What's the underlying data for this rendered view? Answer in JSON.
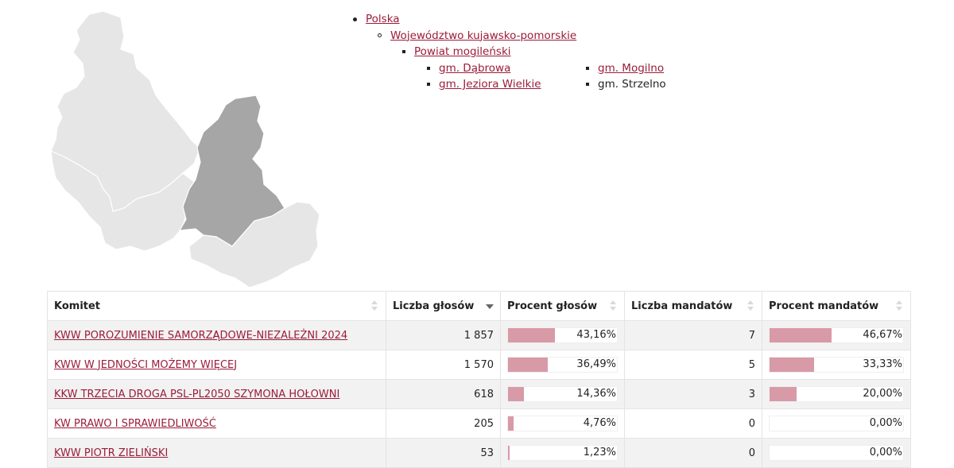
{
  "breadcrumb": {
    "country": "Polska",
    "voivodeship": "Województwo kujawsko-pomorskie",
    "county": "Powiat mogileński",
    "gminas": [
      {
        "label": "gm. Dąbrowa",
        "link": true
      },
      {
        "label": "gm. Mogilno",
        "link": true
      },
      {
        "label": "gm. Jeziora Wielkie",
        "link": true
      },
      {
        "label": "gm. Strzelno",
        "link": false
      }
    ]
  },
  "map": {
    "highlighted_color": "#a6a6a6",
    "region_color": "#e6e6e6",
    "border_color": "#ffffff"
  },
  "table": {
    "headers": {
      "committee": "Komitet",
      "votes": "Liczba głosów",
      "vote_pct": "Procent głosów",
      "seats": "Liczba mandatów",
      "seat_pct": "Procent mandatów"
    },
    "bar_color": "#d89aa7",
    "rows": [
      {
        "committee": "KWW POROZUMIENIE SAMORZĄDOWE-NIEZALEŻNI 2024",
        "votes": "1 857",
        "vote_pct": "43,16%",
        "vote_frac": 0.4316,
        "seats": "7",
        "seat_pct": "46,67%",
        "seat_frac": 0.4667
      },
      {
        "committee": "KWW W JEDNOŚCI MOŻEMY WIĘCEJ",
        "votes": "1 570",
        "vote_pct": "36,49%",
        "vote_frac": 0.3649,
        "seats": "5",
        "seat_pct": "33,33%",
        "seat_frac": 0.3333
      },
      {
        "committee": "KKW TRZECIA DROGA PSL-PL2050 SZYMONA HOŁOWNI",
        "votes": "618",
        "vote_pct": "14,36%",
        "vote_frac": 0.1436,
        "seats": "3",
        "seat_pct": "20,00%",
        "seat_frac": 0.2
      },
      {
        "committee": "KW PRAWO I SPRAWIEDLIWOŚĆ",
        "votes": "205",
        "vote_pct": "4,76%",
        "vote_frac": 0.0476,
        "seats": "0",
        "seat_pct": "0,00%",
        "seat_frac": 0
      },
      {
        "committee": "KWW PIOTR ZIELIŃSKI",
        "votes": "53",
        "vote_pct": "1,23%",
        "vote_frac": 0.0123,
        "seats": "0",
        "seat_pct": "0,00%",
        "seat_frac": 0
      }
    ]
  }
}
